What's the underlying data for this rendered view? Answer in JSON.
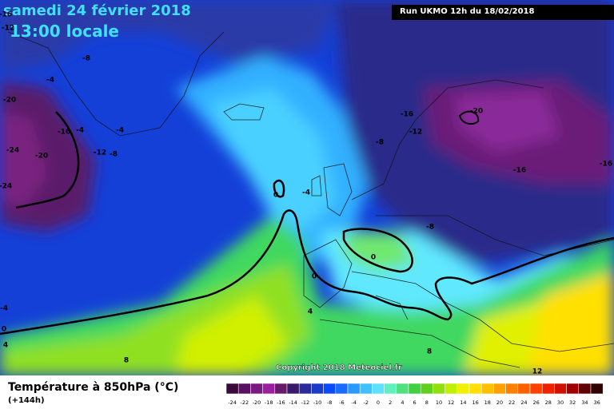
{
  "header": {
    "date": "samedi 24 février 2018",
    "time": "13:00 locale",
    "run": "Run UKMO 12h du 18/02/2018",
    "copyright": "Copyright 2018 Meteociel.fr"
  },
  "footer": {
    "title": "Température à 850hPa (°C)",
    "subtitle": "(+144h)"
  },
  "contour_labels": [
    "-16",
    "-12",
    "-8",
    "-4",
    "-20",
    "-16",
    "-4",
    "-4",
    "-24",
    "-20",
    "-12",
    "-8",
    "-24",
    "-16",
    "-20",
    "-12",
    "-8",
    "-16",
    "-16",
    "0",
    "-4",
    "-8",
    "0",
    "0",
    "4",
    "-4",
    "0",
    "4",
    "8",
    "8",
    "12"
  ],
  "legend": {
    "values": [
      -24,
      -22,
      -20,
      -18,
      -16,
      -14,
      -12,
      -10,
      -8,
      -6,
      -4,
      -2,
      0,
      2,
      4,
      6,
      8,
      10,
      12,
      14,
      16,
      18,
      20,
      22,
      24,
      26,
      28,
      30,
      32,
      34,
      36
    ],
    "colors": [
      "#3a0a3a",
      "#5a1060",
      "#7a1a80",
      "#9a20a0",
      "#6a1a6a",
      "#3a1a6a",
      "#2a2a9a",
      "#1a3ac8",
      "#0a4aff",
      "#1a6aff",
      "#2a9aff",
      "#40c0ff",
      "#60e0ff",
      "#60f0c0",
      "#50e080",
      "#40d040",
      "#60d020",
      "#90e010",
      "#c0f000",
      "#f0f000",
      "#ffe000",
      "#ffc000",
      "#ffa000",
      "#ff8000",
      "#ff6000",
      "#ff4000",
      "#f02000",
      "#d01000",
      "#a00000",
      "#600000",
      "#300000"
    ]
  }
}
